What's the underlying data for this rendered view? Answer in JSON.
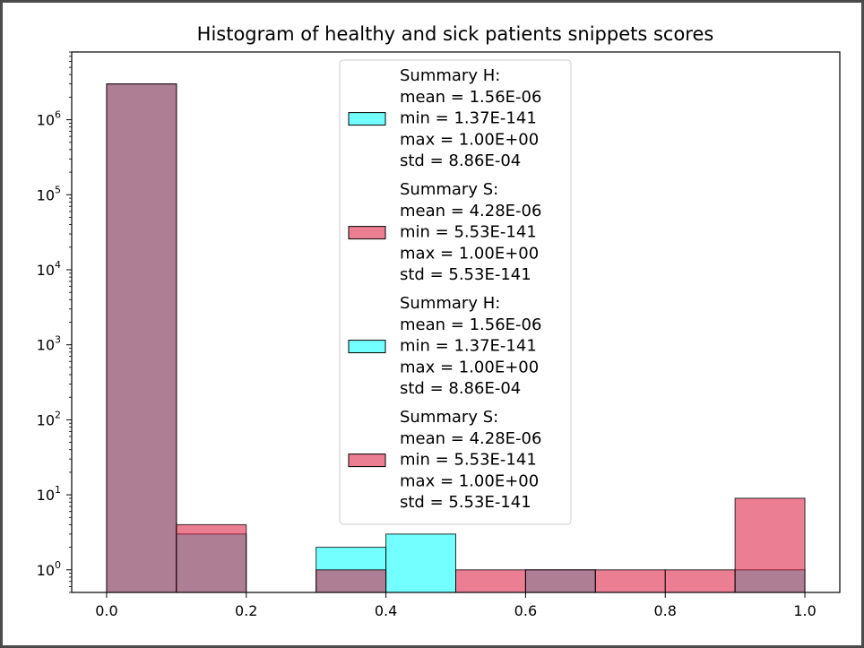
{
  "chart_data": {
    "type": "bar",
    "title": "Histogram of healthy and sick patients snippets scores",
    "xlabel": "",
    "ylabel": "",
    "yscale": "log",
    "xlim": [
      -0.05,
      1.05
    ],
    "ylim": [
      0.5,
      8000000
    ],
    "bin_edges": [
      0.0,
      0.1,
      0.2,
      0.3,
      0.4,
      0.5,
      0.6,
      0.7,
      0.8,
      0.9,
      1.0
    ],
    "x_ticks": [
      {
        "value": 0.0,
        "label": "0.0"
      },
      {
        "value": 0.2,
        "label": "0.2"
      },
      {
        "value": 0.4,
        "label": "0.4"
      },
      {
        "value": 0.6,
        "label": "0.6"
      },
      {
        "value": 0.8,
        "label": "0.8"
      },
      {
        "value": 1.0,
        "label": "1.0"
      }
    ],
    "y_ticks": [
      {
        "value": 1,
        "base": "10",
        "exp": "0"
      },
      {
        "value": 10,
        "base": "10",
        "exp": "1"
      },
      {
        "value": 100,
        "base": "10",
        "exp": "2"
      },
      {
        "value": 1000,
        "base": "10",
        "exp": "3"
      },
      {
        "value": 10000,
        "base": "10",
        "exp": "4"
      },
      {
        "value": 100000,
        "base": "10",
        "exp": "5"
      },
      {
        "value": 1000000,
        "base": "10",
        "exp": "6"
      }
    ],
    "grid": false,
    "legend_position": "upper center",
    "series": [
      {
        "key": "healthy",
        "color": "#00ffff",
        "opacity": 0.55,
        "values": [
          3000000,
          3,
          0,
          2,
          3,
          0,
          1,
          0,
          0,
          1
        ]
      },
      {
        "key": "sick",
        "color": "#dc143c",
        "opacity": 0.55,
        "values": [
          3000000,
          4,
          0,
          1,
          0,
          1,
          1,
          1,
          1,
          9
        ]
      }
    ],
    "legend": [
      {
        "color": "#00ffff",
        "lines": [
          "Summary H:",
          "mean = 1.56E-06",
          "min = 1.37E-141",
          "max = 1.00E+00",
          "std = 8.86E-04"
        ]
      },
      {
        "color": "#dc143c",
        "lines": [
          "Summary S:",
          "mean = 4.28E-06",
          "min = 5.53E-141",
          "max = 1.00E+00",
          "std = 5.53E-141"
        ]
      },
      {
        "color": "#00ffff",
        "lines": [
          "Summary H:",
          "mean = 1.56E-06",
          "min = 1.37E-141",
          "max = 1.00E+00",
          "std = 8.86E-04"
        ]
      },
      {
        "color": "#dc143c",
        "lines": [
          "Summary S:",
          "mean = 4.28E-06",
          "min = 5.53E-141",
          "max = 1.00E+00",
          "std = 5.53E-141"
        ]
      }
    ]
  }
}
